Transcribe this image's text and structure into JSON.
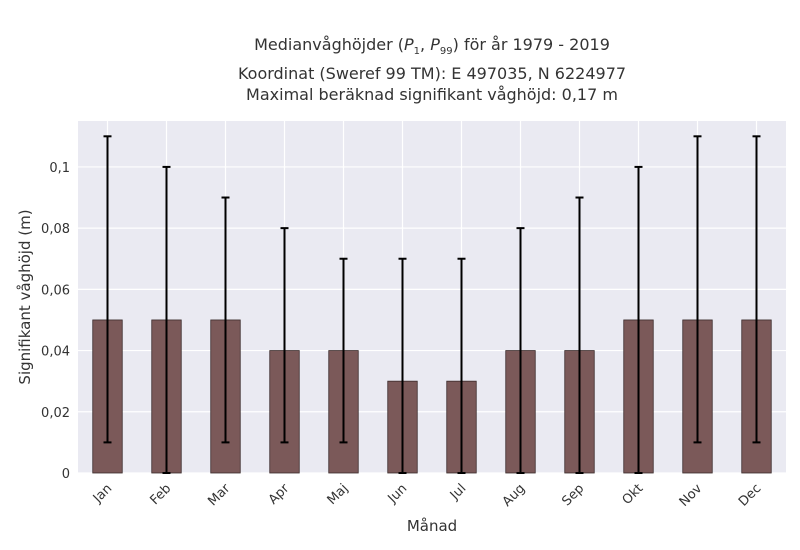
{
  "chart_data": {
    "type": "bar",
    "title_lines": {
      "line1_prefix": "Medianvåghöjder (",
      "p1_symbol": "P",
      "p1_sub": "1",
      "sep": ", ",
      "p99_symbol": "P",
      "p99_sub": "99",
      "line1_suffix": ") för år 1979 - 2019",
      "line2": "Koordinat (Sweref 99 TM): E 497035, N 6224977",
      "line3": "Maximal beräknad signifikant våghöjd: 0,17 m"
    },
    "xlabel": "Månad",
    "ylabel": "Signifikant våghöjd (m)",
    "categories": [
      "Jan",
      "Feb",
      "Mar",
      "Apr",
      "Maj",
      "Jun",
      "Jul",
      "Aug",
      "Sep",
      "Okt",
      "Nov",
      "Dec"
    ],
    "values": [
      0.05,
      0.05,
      0.05,
      0.04,
      0.04,
      0.03,
      0.03,
      0.04,
      0.04,
      0.05,
      0.05,
      0.05
    ],
    "error_low": [
      0.01,
      0.0,
      0.01,
      0.01,
      0.01,
      0.0,
      0.0,
      0.0,
      0.0,
      0.0,
      0.01,
      0.01
    ],
    "error_high": [
      0.11,
      0.1,
      0.09,
      0.08,
      0.07,
      0.07,
      0.07,
      0.08,
      0.09,
      0.1,
      0.11,
      0.11
    ],
    "ylim": [
      0,
      0.115
    ],
    "yticks": [
      0,
      0.02,
      0.04,
      0.06,
      0.08,
      0.1
    ],
    "ytick_labels": [
      "0",
      "0,02",
      "0,04",
      "0,06",
      "0,08",
      "0,1"
    ],
    "grid": true,
    "colors": {
      "bar": "#7b5959",
      "bar_edge": "#3a2a2a",
      "errorbar": "#000000",
      "plot_bg": "#eaeaf2",
      "grid": "#ffffff"
    }
  }
}
